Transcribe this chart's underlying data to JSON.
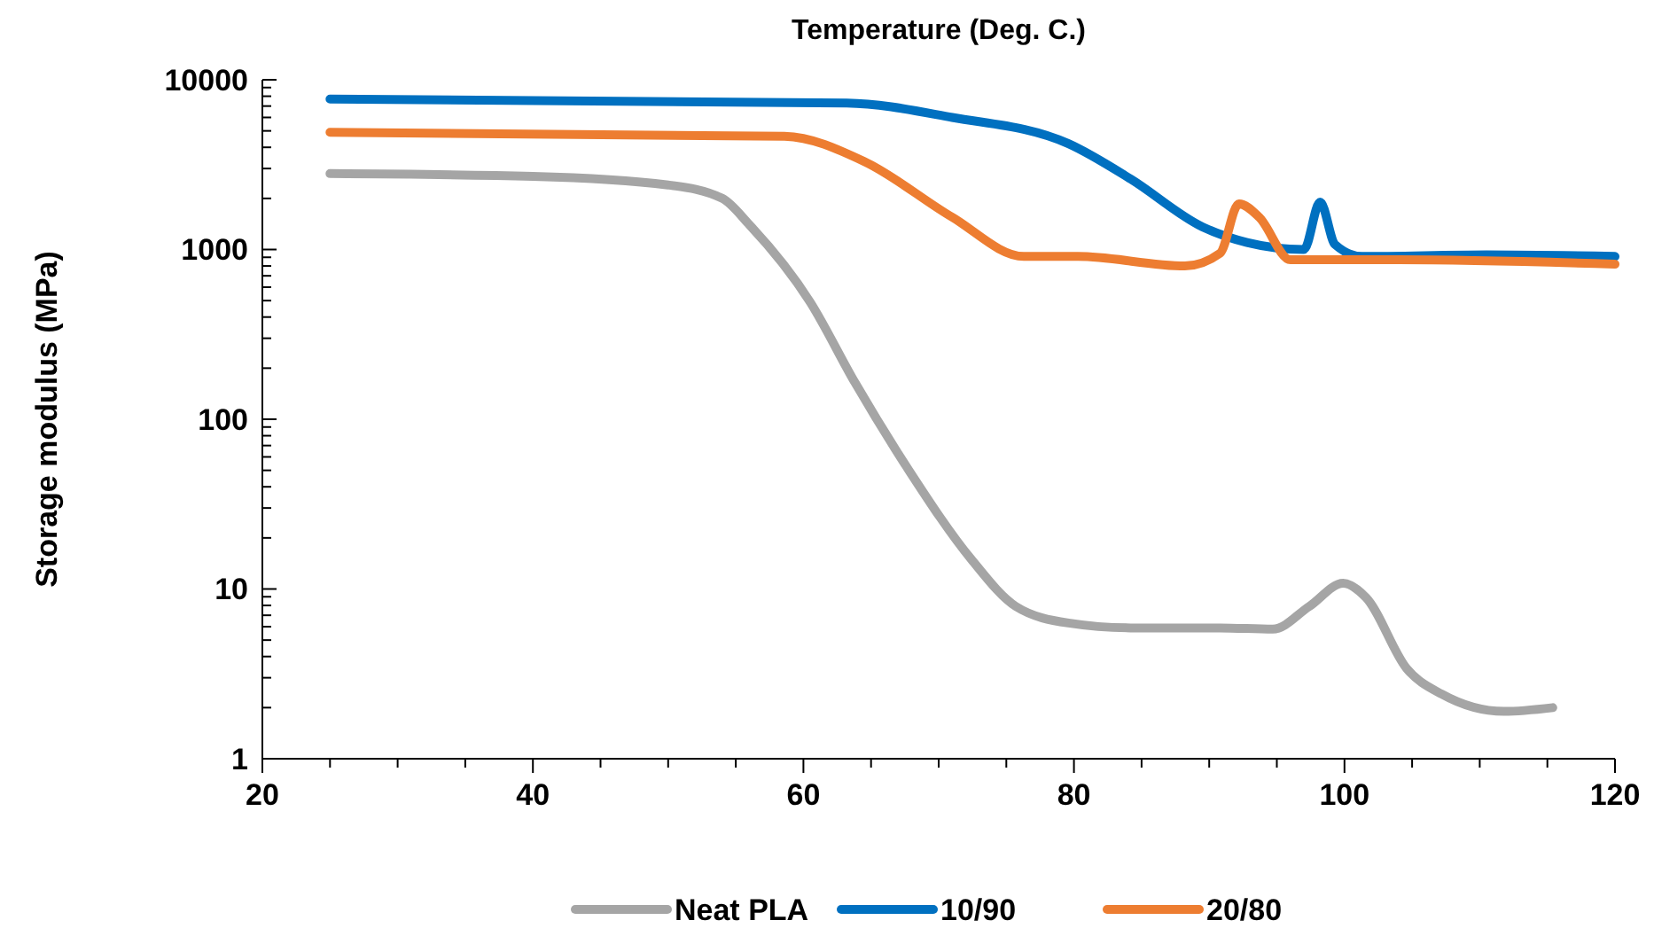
{
  "chart_data": {
    "type": "line",
    "xlabel": "Temperature (Deg. C.)",
    "ylabel": "Storage modulus (MPa)",
    "log": "y",
    "xlim": [
      20,
      120
    ],
    "xticks": [
      20,
      40,
      60,
      80,
      100,
      120
    ],
    "ylim": [
      1,
      10000
    ],
    "yticks": [
      1,
      10,
      100,
      1000,
      10000
    ],
    "grid": false,
    "legend": "bottom",
    "marker": "none",
    "line_style": "solid",
    "series": [
      {
        "name": "Neat PLA",
        "color": "#a5a5a5",
        "x": [
          25,
          40,
          50,
          54,
          56,
          60.5,
          63.8,
          67.8,
          72.4,
          75.7,
          79.6,
          84.2,
          90.8,
          94.7,
          97.4,
          99.9,
          101.6,
          104.6,
          107.2,
          111.8,
          115.4
        ],
        "values": [
          2800,
          2700,
          2400,
          2000,
          1400,
          490,
          165,
          50,
          15,
          7.9,
          6.3,
          5.9,
          5.9,
          5.8,
          7.9,
          10.8,
          8.9,
          3.4,
          2.4,
          1.9,
          2.0
        ]
      },
      {
        "name": "10/90",
        "color": "#0070c0",
        "x": [
          25,
          63.2,
          71,
          79.6,
          84.2,
          89.5,
          92.8,
          97,
          98.2,
          99.3,
          101.3,
          110.5,
          120
        ],
        "values": [
          7700,
          7300,
          6000,
          4200,
          2600,
          1360,
          1100,
          1000,
          1900,
          1070,
          910,
          930,
          910
        ]
      },
      {
        "name": "20/80",
        "color": "#ed7d31",
        "x": [
          25,
          58.6,
          64.5,
          71,
          76.3,
          80.3,
          88.2,
          90.8,
          92.2,
          93.7,
          96,
          104,
          120
        ],
        "values": [
          4900,
          4650,
          3300,
          1550,
          910,
          910,
          800,
          950,
          1860,
          1550,
          870,
          870,
          820
        ]
      }
    ]
  }
}
